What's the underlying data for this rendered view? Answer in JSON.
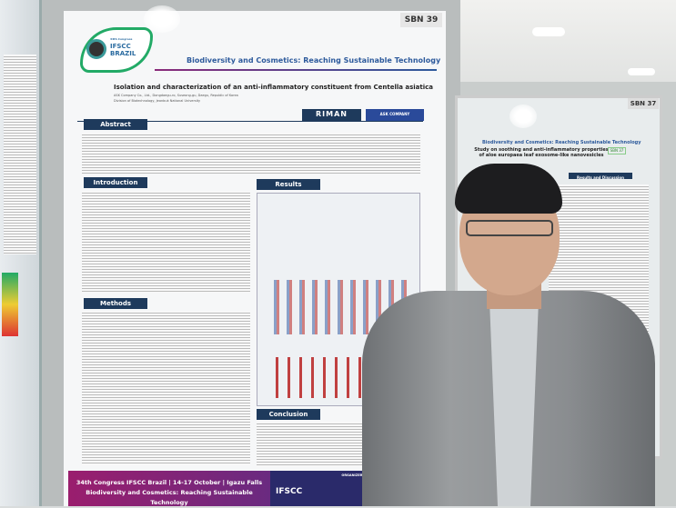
{
  "scene": "person standing in front of scientific conference posters",
  "main_poster": {
    "board_number": "SBN 39",
    "logo": {
      "congress": "34th Congress",
      "name_line1": "IFSCC",
      "name_line2": "BRAZIL"
    },
    "theme": "Biodiversity and Cosmetics: Reaching Sustainable Technology",
    "title": "Isolation and characterization of an anti-inflammatory constituent from Centella asiatica",
    "affiliations": [
      "ASK Company Co., Ltd., Dongdaegu-ro, Suseong-gu, Daegu, Republic of Korea",
      "Division of Biotechnology, Jeonbuk National University"
    ],
    "sponsors": [
      "RIMAN",
      "ASK COMPANY"
    ],
    "sections": [
      "Abstract",
      "Introduction",
      "Results",
      "Methods",
      "Conclusion"
    ],
    "footer": {
      "line1": "34th Congress IFSCC Brazil | 14-17 October | Igazu Falls",
      "line2": "Biodiversity and Cosmetics: Reaching Sustainable Technology",
      "organizers_label": "ORGANIZERS",
      "organizer": "IFSCC"
    }
  },
  "right_poster": {
    "board_number": "SBN 37",
    "theme": "Biodiversity and Cosmetics: Reaching Sustainable Technology",
    "title": "Study on soothing and anti-inflammatory properties of aloe europaea leaf exosome-like nanovesicles",
    "tag": "SBN 37",
    "section": "Results and Discussion"
  }
}
